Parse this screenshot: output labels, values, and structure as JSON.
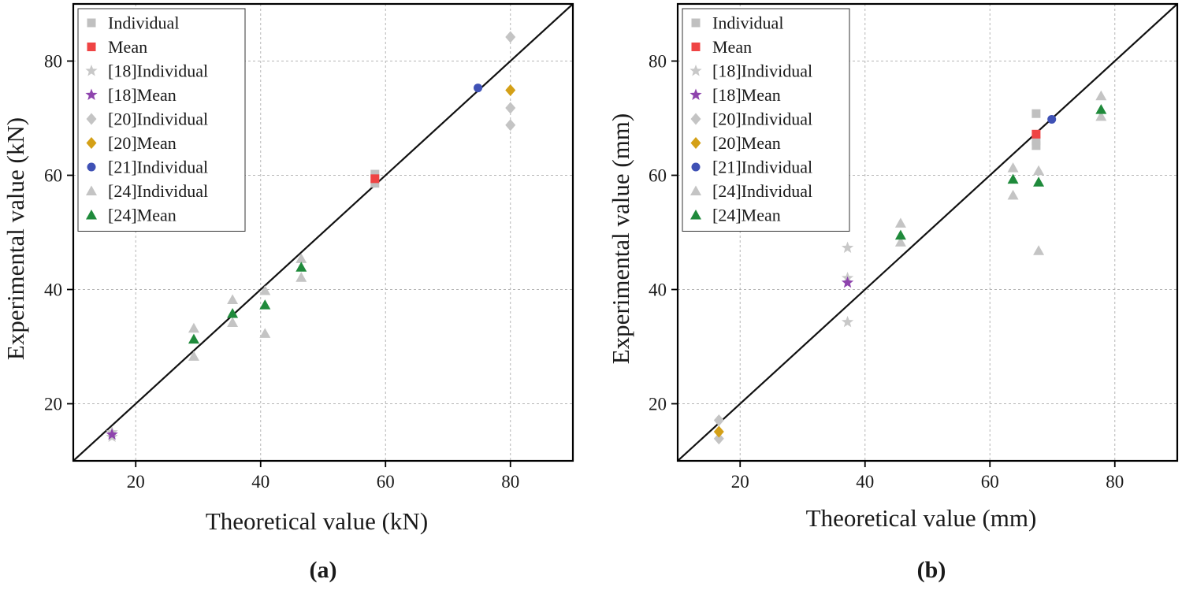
{
  "colors": {
    "individual": "#c0c0c0",
    "mean": "#ef4444",
    "ref18_individual": "#c8c8c8",
    "ref18_mean": "#8e44ad",
    "ref20_individual": "#c4c4c4",
    "ref20_mean": "#d4a017",
    "ref21_individual": "#3f51b5",
    "ref24_individual": "#c4c4c4",
    "ref24_mean": "#1f8a3b",
    "reference_line": "#111111",
    "grid": "#b5b5b5"
  },
  "chart_data": [
    {
      "type": "scatter",
      "panel_label": "(a)",
      "xlabel": "Theoretical value (kN)",
      "ylabel": "Experimental value (kN)",
      "xlim": [
        10,
        90
      ],
      "ylim": [
        10,
        90
      ],
      "xticks": [
        20,
        40,
        60,
        80
      ],
      "yticks": [
        20,
        40,
        60,
        80
      ],
      "grid": true,
      "reference_line": "y = x",
      "legend_position": "top-left",
      "series": [
        {
          "name": "Individual",
          "marker": "square",
          "color_key": "individual",
          "points": [
            [
              58.3,
              60.2
            ],
            [
              58.3,
              58.6
            ]
          ]
        },
        {
          "name": "Mean",
          "marker": "square",
          "color_key": "mean",
          "points": [
            [
              58.3,
              59.4
            ]
          ]
        },
        {
          "name": "[18]Individual",
          "marker": "star",
          "color_key": "ref18_individual",
          "points": [
            [
              16.2,
              14.2
            ],
            [
              16.2,
              15.0
            ]
          ]
        },
        {
          "name": "[18]Mean",
          "marker": "star",
          "color_key": "ref18_mean",
          "points": [
            [
              16.2,
              14.6
            ]
          ]
        },
        {
          "name": "[20]Individual",
          "marker": "diamond",
          "color_key": "ref20_individual",
          "points": [
            [
              80,
              84.2
            ],
            [
              80,
              71.8
            ],
            [
              80,
              68.8
            ]
          ]
        },
        {
          "name": "[20]Mean",
          "marker": "diamond",
          "color_key": "ref20_mean",
          "points": [
            [
              80,
              74.9
            ]
          ]
        },
        {
          "name": "[21]Individual",
          "marker": "circle",
          "color_key": "ref21_individual",
          "points": [
            [
              74.8,
              75.3
            ]
          ]
        },
        {
          "name": "[24]Individual",
          "marker": "triangle",
          "color_key": "ref24_individual",
          "points": [
            [
              29.3,
              33.2
            ],
            [
              29.3,
              28.3
            ],
            [
              35.5,
              38.2
            ],
            [
              35.5,
              34.2
            ],
            [
              40.7,
              39.8
            ],
            [
              40.7,
              32.3
            ],
            [
              46.5,
              45.4
            ],
            [
              46.5,
              42.1
            ]
          ]
        },
        {
          "name": "[24]Mean",
          "marker": "triangle",
          "color_key": "ref24_mean",
          "points": [
            [
              29.3,
              31.3
            ],
            [
              35.5,
              35.8
            ],
            [
              40.7,
              37.3
            ],
            [
              46.5,
              43.9
            ]
          ]
        }
      ]
    },
    {
      "type": "scatter",
      "panel_label": "(b)",
      "xlabel": "Theoretical value (mm)",
      "ylabel": "Experimental value (mm)",
      "xlim": [
        10,
        90
      ],
      "ylim": [
        10,
        90
      ],
      "xticks": [
        20,
        40,
        60,
        80
      ],
      "yticks": [
        20,
        40,
        60,
        80
      ],
      "grid": true,
      "reference_line": "y = x",
      "legend_position": "top-left",
      "series": [
        {
          "name": "Individual",
          "marker": "square",
          "color_key": "individual",
          "points": [
            [
              67.4,
              70.8
            ],
            [
              67.4,
              65.2
            ],
            [
              67.4,
              66.0
            ]
          ]
        },
        {
          "name": "Mean",
          "marker": "square",
          "color_key": "mean",
          "points": [
            [
              67.4,
              67.2
            ]
          ]
        },
        {
          "name": "[18]Individual",
          "marker": "star",
          "color_key": "ref18_individual",
          "points": [
            [
              37.2,
              47.3
            ],
            [
              37.2,
              42.0
            ],
            [
              37.2,
              34.3
            ]
          ]
        },
        {
          "name": "[18]Mean",
          "marker": "star",
          "color_key": "ref18_mean",
          "points": [
            [
              37.2,
              41.2
            ]
          ]
        },
        {
          "name": "[20]Individual",
          "marker": "diamond",
          "color_key": "ref20_individual",
          "points": [
            [
              16.6,
              17.1
            ],
            [
              16.6,
              13.9
            ]
          ]
        },
        {
          "name": "[20]Mean",
          "marker": "diamond",
          "color_key": "ref20_mean",
          "points": [
            [
              16.6,
              15.1
            ]
          ]
        },
        {
          "name": "[21]Individual",
          "marker": "circle",
          "color_key": "ref21_individual",
          "points": [
            [
              69.9,
              69.8
            ]
          ]
        },
        {
          "name": "[24]Individual",
          "marker": "triangle",
          "color_key": "ref24_individual",
          "points": [
            [
              45.7,
              51.6
            ],
            [
              45.7,
              48.3
            ],
            [
              63.7,
              61.3
            ],
            [
              63.7,
              56.5
            ],
            [
              67.8,
              60.8
            ],
            [
              67.8,
              46.8
            ],
            [
              77.8,
              73.9
            ],
            [
              77.8,
              70.3
            ]
          ]
        },
        {
          "name": "[24]Mean",
          "marker": "triangle",
          "color_key": "ref24_mean",
          "points": [
            [
              45.7,
              49.5
            ],
            [
              63.7,
              59.3
            ],
            [
              67.8,
              58.8
            ],
            [
              77.8,
              71.5
            ]
          ]
        }
      ]
    }
  ]
}
